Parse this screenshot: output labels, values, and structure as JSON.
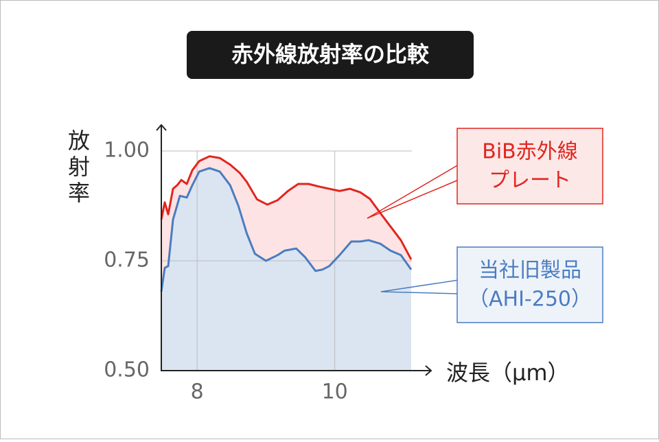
{
  "chart_data": {
    "type": "area-line",
    "title": "赤外線放射率の比較",
    "y_label": [
      "放",
      "射",
      "率"
    ],
    "x_label": "波長（μm）",
    "xlim": [
      7.48,
      11.12
    ],
    "xticks": [
      8,
      10
    ],
    "ylim": [
      0.5,
      1.0
    ],
    "yticks": [
      {
        "value": 0.5,
        "label": "0.50"
      },
      {
        "value": 0.75,
        "label": "0.75"
      },
      {
        "value": 1.0,
        "label": "1.00"
      }
    ],
    "grid": true,
    "series": [
      {
        "name": [
          "BiB赤外線",
          "プレート"
        ],
        "color": "#e0261f",
        "fill": "#fde3e3",
        "box_fill": "#fde8e8",
        "x": [
          7.48,
          7.53,
          7.58,
          7.65,
          7.71,
          7.77,
          7.85,
          7.93,
          8.03,
          8.18,
          8.33,
          8.48,
          8.62,
          8.72,
          8.87,
          9.02,
          9.17,
          9.32,
          9.47,
          9.62,
          9.77,
          9.92,
          10.07,
          10.22,
          10.37,
          10.51,
          10.66,
          10.81,
          10.96,
          11.11
        ],
        "values": [
          0.844,
          0.883,
          0.856,
          0.914,
          0.922,
          0.934,
          0.925,
          0.956,
          0.977,
          0.988,
          0.984,
          0.969,
          0.95,
          0.93,
          0.89,
          0.878,
          0.888,
          0.909,
          0.925,
          0.925,
          0.919,
          0.914,
          0.909,
          0.914,
          0.906,
          0.891,
          0.859,
          0.828,
          0.797,
          0.753
        ]
      },
      {
        "name": [
          "当社旧製品",
          "（AHI-250）"
        ],
        "color": "#4a7cc0",
        "fill": "#dbe5f1",
        "box_fill": "#eef3fa",
        "x": [
          7.48,
          7.53,
          7.58,
          7.65,
          7.75,
          7.85,
          7.93,
          8.03,
          8.18,
          8.33,
          8.48,
          8.6,
          8.72,
          8.84,
          9.0,
          9.17,
          9.27,
          9.44,
          9.57,
          9.72,
          9.82,
          9.92,
          10.07,
          10.24,
          10.37,
          10.49,
          10.66,
          10.81,
          10.96,
          11.11
        ],
        "values": [
          0.68,
          0.734,
          0.738,
          0.844,
          0.898,
          0.894,
          0.922,
          0.953,
          0.961,
          0.953,
          0.922,
          0.875,
          0.813,
          0.766,
          0.75,
          0.763,
          0.773,
          0.778,
          0.758,
          0.727,
          0.73,
          0.738,
          0.763,
          0.794,
          0.794,
          0.797,
          0.789,
          0.773,
          0.763,
          0.73
        ]
      }
    ]
  }
}
